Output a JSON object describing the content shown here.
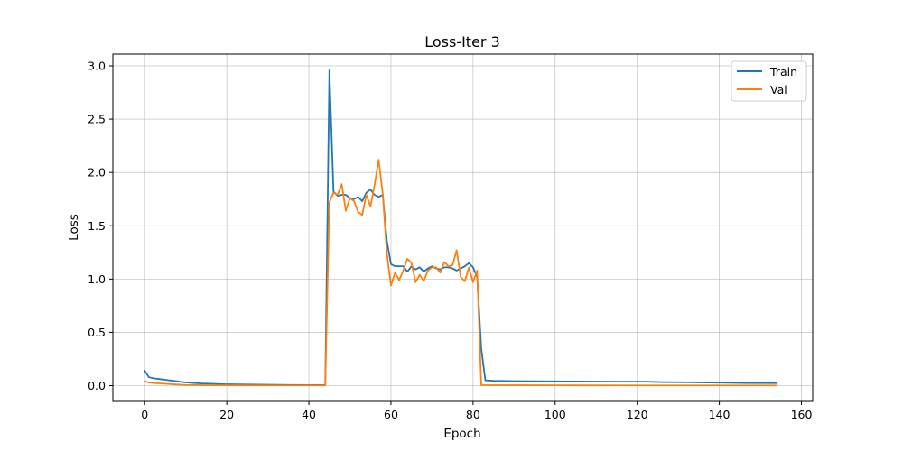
{
  "chart_data": {
    "type": "line",
    "title": "Loss-Iter 3",
    "xlabel": "Epoch",
    "ylabel": "Loss",
    "xlim": [
      -7.75,
      162.75
    ],
    "ylim": [
      -0.148,
      3.11
    ],
    "xticks": [
      0,
      20,
      40,
      60,
      80,
      100,
      120,
      140,
      160
    ],
    "yticks": [
      0.0,
      0.5,
      1.0,
      1.5,
      2.0,
      2.5,
      3.0
    ],
    "ytick_labels": [
      "0.0",
      "0.5",
      "1.0",
      "1.5",
      "2.0",
      "2.5",
      "3.0"
    ],
    "grid": true,
    "legend_position": "top-right",
    "series": [
      {
        "name": "Train",
        "color": "#1f77b4",
        "points": [
          [
            0,
            0.14
          ],
          [
            1,
            0.08
          ],
          [
            2,
            0.07
          ],
          [
            3,
            0.065
          ],
          [
            4,
            0.06
          ],
          [
            5,
            0.055
          ],
          [
            6,
            0.05
          ],
          [
            7,
            0.045
          ],
          [
            8,
            0.04
          ],
          [
            9,
            0.035
          ],
          [
            10,
            0.03
          ],
          [
            12,
            0.025
          ],
          [
            14,
            0.02
          ],
          [
            16,
            0.018
          ],
          [
            18,
            0.015
          ],
          [
            20,
            0.013
          ],
          [
            25,
            0.01
          ],
          [
            30,
            0.008
          ],
          [
            35,
            0.006
          ],
          [
            40,
            0.005
          ],
          [
            44,
            0.005
          ],
          [
            45,
            2.96
          ],
          [
            46,
            1.82
          ],
          [
            47,
            1.78
          ],
          [
            48,
            1.79
          ],
          [
            49,
            1.79
          ],
          [
            50,
            1.76
          ],
          [
            51,
            1.75
          ],
          [
            52,
            1.77
          ],
          [
            53,
            1.73
          ],
          [
            54,
            1.81
          ],
          [
            55,
            1.84
          ],
          [
            56,
            1.79
          ],
          [
            57,
            1.77
          ],
          [
            58,
            1.79
          ],
          [
            59,
            1.36
          ],
          [
            60,
            1.14
          ],
          [
            61,
            1.12
          ],
          [
            62,
            1.12
          ],
          [
            63,
            1.12
          ],
          [
            64,
            1.07
          ],
          [
            65,
            1.12
          ],
          [
            66,
            1.09
          ],
          [
            67,
            1.11
          ],
          [
            68,
            1.07
          ],
          [
            69,
            1.1
          ],
          [
            70,
            1.12
          ],
          [
            71,
            1.1
          ],
          [
            72,
            1.09
          ],
          [
            73,
            1.11
          ],
          [
            74,
            1.11
          ],
          [
            75,
            1.1
          ],
          [
            76,
            1.08
          ],
          [
            77,
            1.1
          ],
          [
            78,
            1.12
          ],
          [
            79,
            1.15
          ],
          [
            80,
            1.11
          ],
          [
            81,
            1.02
          ],
          [
            82,
            0.35
          ],
          [
            83,
            0.05
          ],
          [
            85,
            0.045
          ],
          [
            90,
            0.042
          ],
          [
            100,
            0.04
          ],
          [
            110,
            0.038
          ],
          [
            120,
            0.037
          ],
          [
            122,
            0.037
          ],
          [
            126,
            0.033
          ],
          [
            130,
            0.032
          ],
          [
            140,
            0.028
          ],
          [
            146,
            0.025
          ],
          [
            154,
            0.024
          ]
        ]
      },
      {
        "name": "Val",
        "color": "#ff7f0e",
        "points": [
          [
            0,
            0.04
          ],
          [
            1,
            0.03
          ],
          [
            2,
            0.025
          ],
          [
            4,
            0.02
          ],
          [
            6,
            0.015
          ],
          [
            8,
            0.01
          ],
          [
            10,
            0.006
          ],
          [
            15,
            0.004
          ],
          [
            20,
            0.003
          ],
          [
            30,
            0.002
          ],
          [
            40,
            0.002
          ],
          [
            44,
            0.002
          ],
          [
            45,
            1.72
          ],
          [
            46,
            1.81
          ],
          [
            47,
            1.79
          ],
          [
            48,
            1.89
          ],
          [
            49,
            1.64
          ],
          [
            50,
            1.76
          ],
          [
            51,
            1.73
          ],
          [
            52,
            1.63
          ],
          [
            53,
            1.6
          ],
          [
            54,
            1.79
          ],
          [
            55,
            1.68
          ],
          [
            56,
            1.88
          ],
          [
            57,
            2.12
          ],
          [
            58,
            1.8
          ],
          [
            59,
            1.24
          ],
          [
            60,
            0.94
          ],
          [
            61,
            1.06
          ],
          [
            62,
            0.99
          ],
          [
            63,
            1.08
          ],
          [
            64,
            1.19
          ],
          [
            65,
            1.15
          ],
          [
            66,
            0.97
          ],
          [
            67,
            1.04
          ],
          [
            68,
            0.98
          ],
          [
            69,
            1.08
          ],
          [
            70,
            1.11
          ],
          [
            71,
            1.11
          ],
          [
            72,
            1.06
          ],
          [
            73,
            1.16
          ],
          [
            74,
            1.12
          ],
          [
            75,
            1.13
          ],
          [
            76,
            1.27
          ],
          [
            77,
            1.02
          ],
          [
            78,
            0.98
          ],
          [
            79,
            1.11
          ],
          [
            80,
            0.97
          ],
          [
            81,
            1.08
          ],
          [
            82,
            0.005
          ],
          [
            90,
            0.004
          ],
          [
            100,
            0.003
          ],
          [
            120,
            0.002
          ],
          [
            140,
            0.002
          ],
          [
            154,
            0.002
          ]
        ]
      }
    ]
  }
}
